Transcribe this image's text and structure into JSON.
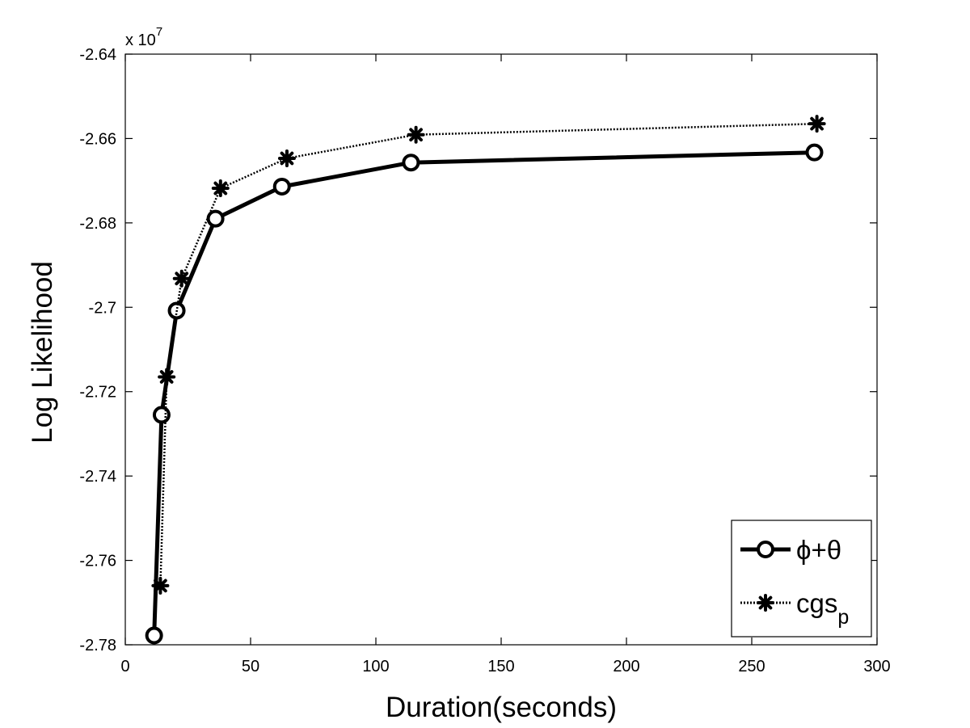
{
  "chart_data": {
    "type": "line",
    "title": "",
    "xlabel": "Duration(seconds)",
    "ylabel": "Log Likelihood",
    "exponent_label": "x 10",
    "exponent_power": "7",
    "xlim": [
      0,
      300
    ],
    "ylim": [
      -2.78,
      -2.64
    ],
    "x_ticks": [
      0,
      50,
      100,
      150,
      200,
      250,
      300
    ],
    "x_tick_labels": [
      "0",
      "50",
      "100",
      "150",
      "200",
      "250",
      "300"
    ],
    "y_ticks": [
      -2.78,
      -2.76,
      -2.74,
      -2.72,
      -2.7,
      -2.68,
      -2.66,
      -2.64
    ],
    "y_tick_labels": [
      "-2.78",
      "-2.76",
      "-2.74",
      "-2.72",
      "-2.7",
      "-2.68",
      "-2.66",
      "-2.64"
    ],
    "grid": false,
    "legend_position": "bottom-right",
    "series": [
      {
        "name": "ϕ+θ",
        "style": "solid",
        "marker": "circle",
        "color": "#000000",
        "x": [
          11.5,
          14.5,
          20.5,
          36,
          62.5,
          114,
          275
        ],
        "y": [
          -2.7778,
          -2.7255,
          -2.7008,
          -2.679,
          -2.6714,
          -2.6657,
          -2.6633
        ]
      },
      {
        "name": "cgs",
        "name_subscript": "p",
        "style": "dotted",
        "marker": "asterisk",
        "color": "#000000",
        "x": [
          14,
          16.5,
          22.5,
          38,
          64.5,
          116,
          276
        ],
        "y": [
          -2.766,
          -2.7165,
          -2.6932,
          -2.6718,
          -2.6647,
          -2.6591,
          -2.6565
        ]
      }
    ]
  }
}
